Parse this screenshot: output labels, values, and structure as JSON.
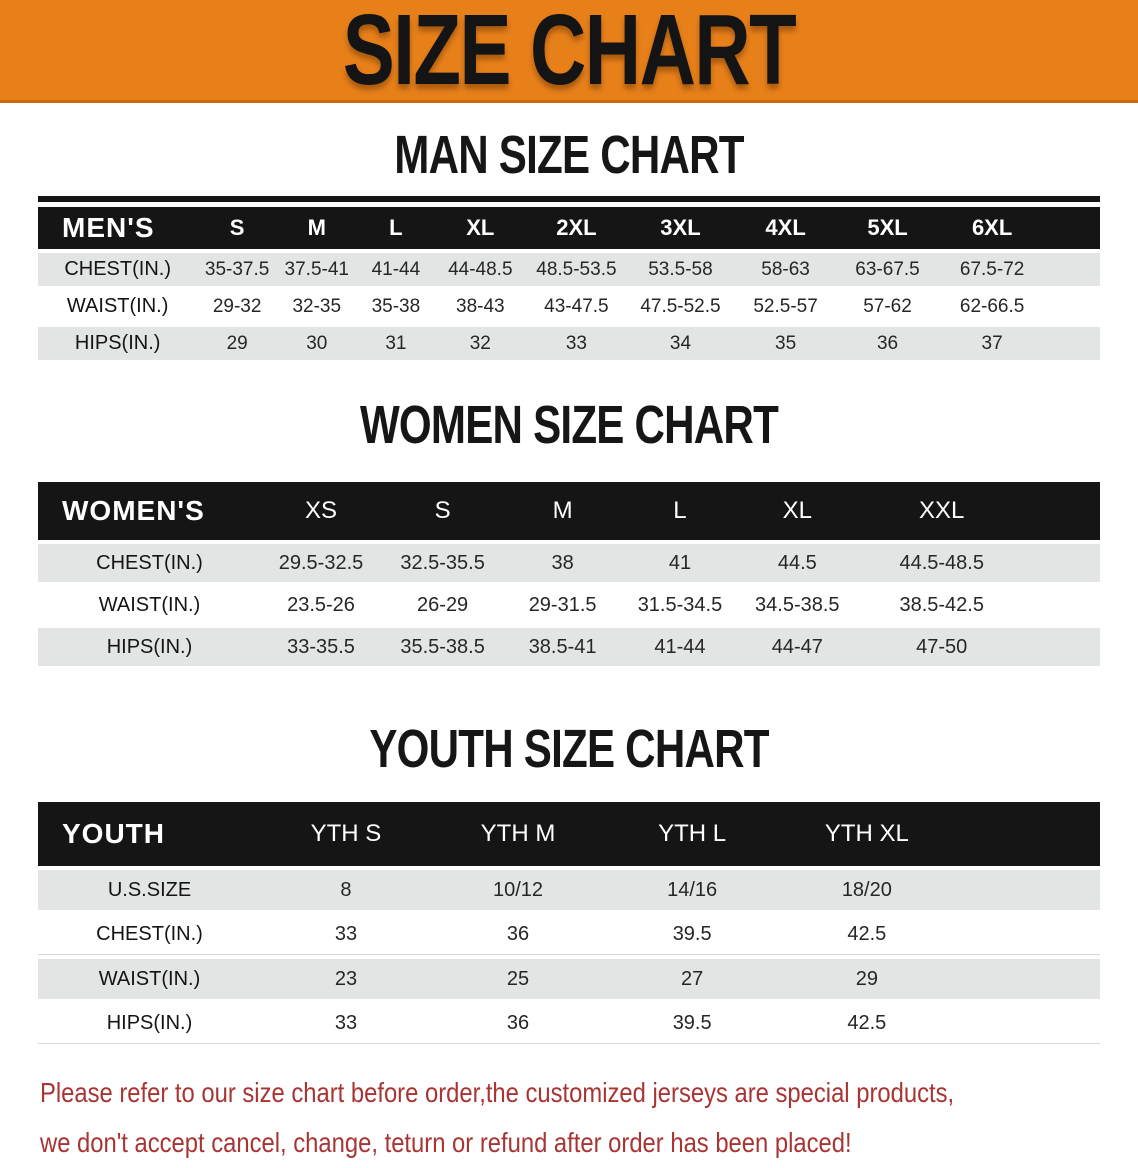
{
  "banner": {
    "title": "SIZE CHART",
    "bg_color": "#E8801A",
    "text_color": "#141414"
  },
  "colors": {
    "header_band": "#151515",
    "stripe_gray": "#E3E5E5",
    "footer_red": "#A83534"
  },
  "chart_data": [
    {
      "type": "table",
      "title": "MAN SIZE CHART",
      "group_label": "MEN'S",
      "columns": [
        "S",
        "M",
        "L",
        "XL",
        "2XL",
        "3XL",
        "4XL",
        "5XL",
        "6XL"
      ],
      "rows": [
        {
          "label": "CHEST(IN.)",
          "values": [
            "35-37.5",
            "37.5-41",
            "41-44",
            "44-48.5",
            "48.5-53.5",
            "53.5-58",
            "58-63",
            "63-67.5",
            "67.5-72"
          ]
        },
        {
          "label": "WAIST(IN.)",
          "values": [
            "29-32",
            "32-35",
            "35-38",
            "38-43",
            "43-47.5",
            "47.5-52.5",
            "52.5-57",
            "57-62",
            "62-66.5"
          ]
        },
        {
          "label": "HIPS(IN.)",
          "values": [
            "29",
            "30",
            "31",
            "32",
            "33",
            "34",
            "35",
            "36",
            "37"
          ]
        }
      ]
    },
    {
      "type": "table",
      "title": "WOMEN SIZE CHART",
      "group_label": "WOMEN'S",
      "columns": [
        "XS",
        "S",
        "M",
        "L",
        "XL",
        "XXL"
      ],
      "rows": [
        {
          "label": "CHEST(IN.)",
          "values": [
            "29.5-32.5",
            "32.5-35.5",
            "38",
            "41",
            "44.5",
            "44.5-48.5"
          ]
        },
        {
          "label": "WAIST(IN.)",
          "values": [
            "23.5-26",
            "26-29",
            "29-31.5",
            "31.5-34.5",
            "34.5-38.5",
            "38.5-42.5"
          ]
        },
        {
          "label": "HIPS(IN.)",
          "values": [
            "33-35.5",
            "35.5-38.5",
            "38.5-41",
            "41-44",
            "44-47",
            "47-50"
          ]
        }
      ]
    },
    {
      "type": "table",
      "title": "YOUTH SIZE CHART",
      "group_label": "YOUTH",
      "columns": [
        "YTH S",
        "YTH M",
        "YTH L",
        "YTH XL"
      ],
      "rows": [
        {
          "label": "U.S.SIZE",
          "values": [
            "8",
            "10/12",
            "14/16",
            "18/20"
          ]
        },
        {
          "label": "CHEST(IN.)",
          "values": [
            "33",
            "36",
            "39.5",
            "42.5"
          ]
        },
        {
          "label": "WAIST(IN.)",
          "values": [
            "23",
            "25",
            "27",
            "29"
          ]
        },
        {
          "label": "HIPS(IN.)",
          "values": [
            "33",
            "36",
            "39.5",
            "42.5"
          ]
        }
      ]
    }
  ],
  "footer_note": {
    "lines": [
      "Please refer to our size chart before order,the customized jerseys are special products,",
      "we don't accept cancel, change, teturn or refund after order has been placed!"
    ]
  }
}
